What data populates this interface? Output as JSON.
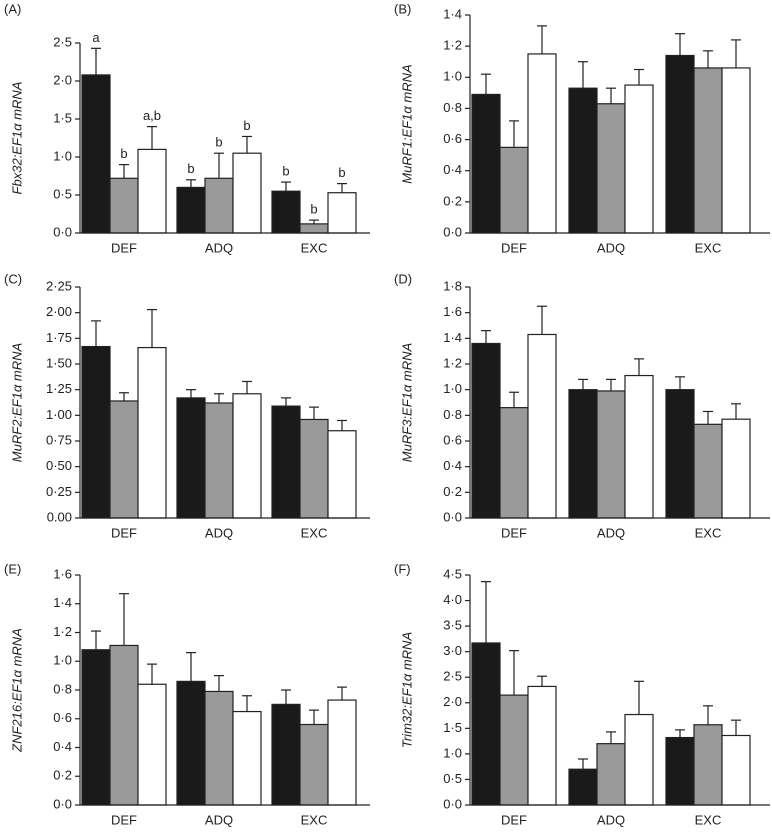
{
  "chart_data": [
    {
      "type": "bar",
      "panel": "(A)",
      "ylabel": "Fbx32:EF1α mRNA",
      "categories": [
        "DEF",
        "ADQ",
        "EXC"
      ],
      "ylim": [
        0,
        2.5
      ],
      "yticks": [
        {
          "value": 0,
          "label": "0·0"
        },
        {
          "value": 0.5,
          "label": "0·5"
        },
        {
          "value": 1,
          "label": "1·0"
        },
        {
          "value": 1.5,
          "label": "1·5"
        },
        {
          "value": 2,
          "label": "2·0"
        },
        {
          "value": 2.5,
          "label": "2·5"
        }
      ],
      "series": [
        {
          "color": "#1a1a1a",
          "values": [
            2.08,
            0.6,
            0.55
          ],
          "errors": [
            0.35,
            0.1,
            0.12
          ],
          "letters": [
            "a",
            "b",
            "b"
          ]
        },
        {
          "color": "#9a9a9a",
          "values": [
            0.72,
            0.72,
            0.12
          ],
          "errors": [
            0.18,
            0.33,
            0.05
          ],
          "letters": [
            "b",
            "b",
            "b"
          ]
        },
        {
          "color": "#ffffff",
          "values": [
            1.1,
            1.05,
            0.53
          ],
          "errors": [
            0.3,
            0.22,
            0.12
          ],
          "letters": [
            "a,b",
            "b",
            "b"
          ]
        }
      ]
    },
    {
      "type": "bar",
      "panel": "(B)",
      "ylabel": "MuRF1:EF1α mRNA",
      "categories": [
        "DEF",
        "ADQ",
        "EXC"
      ],
      "ylim": [
        0,
        1.4
      ],
      "yticks": [
        {
          "value": 0,
          "label": "0·0"
        },
        {
          "value": 0.2,
          "label": "0·2"
        },
        {
          "value": 0.4,
          "label": "0·4"
        },
        {
          "value": 0.6,
          "label": "0·6"
        },
        {
          "value": 0.8,
          "label": "0·8"
        },
        {
          "value": 1,
          "label": "1·0"
        },
        {
          "value": 1.2,
          "label": "1·2"
        },
        {
          "value": 1.4,
          "label": "1·4"
        }
      ],
      "series": [
        {
          "color": "#1a1a1a",
          "values": [
            0.89,
            0.93,
            1.14
          ],
          "errors": [
            0.13,
            0.17,
            0.14
          ]
        },
        {
          "color": "#9a9a9a",
          "values": [
            0.55,
            0.83,
            1.06
          ],
          "errors": [
            0.17,
            0.1,
            0.11
          ]
        },
        {
          "color": "#ffffff",
          "values": [
            1.15,
            0.95,
            1.06
          ],
          "errors": [
            0.18,
            0.1,
            0.18
          ]
        }
      ]
    },
    {
      "type": "bar",
      "panel": "(C)",
      "ylabel": "MuRF2:EF1α mRNA",
      "categories": [
        "DEF",
        "ADQ",
        "EXC"
      ],
      "ylim": [
        0,
        2.25
      ],
      "yticks": [
        {
          "value": 0,
          "label": "0.00"
        },
        {
          "value": 0.25,
          "label": "0·25"
        },
        {
          "value": 0.5,
          "label": "0·50"
        },
        {
          "value": 0.75,
          "label": "0·75"
        },
        {
          "value": 1,
          "label": "1·00"
        },
        {
          "value": 1.25,
          "label": "1·25"
        },
        {
          "value": 1.5,
          "label": "1·50"
        },
        {
          "value": 1.75,
          "label": "1·75"
        },
        {
          "value": 2,
          "label": "2·00"
        },
        {
          "value": 2.25,
          "label": "2·25"
        }
      ],
      "series": [
        {
          "color": "#1a1a1a",
          "values": [
            1.67,
            1.17,
            1.09
          ],
          "errors": [
            0.25,
            0.08,
            0.08
          ]
        },
        {
          "color": "#9a9a9a",
          "values": [
            1.14,
            1.12,
            0.96
          ],
          "errors": [
            0.08,
            0.09,
            0.12
          ]
        },
        {
          "color": "#ffffff",
          "values": [
            1.66,
            1.21,
            0.85
          ],
          "errors": [
            0.37,
            0.12,
            0.1
          ]
        }
      ]
    },
    {
      "type": "bar",
      "panel": "(D)",
      "ylabel": "MuRF3:EF1α mRNA",
      "categories": [
        "DEF",
        "ADQ",
        "EXC"
      ],
      "ylim": [
        0,
        1.8
      ],
      "yticks": [
        {
          "value": 0,
          "label": "0·0"
        },
        {
          "value": 0.2,
          "label": "0·2"
        },
        {
          "value": 0.4,
          "label": "0·4"
        },
        {
          "value": 0.6,
          "label": "0·6"
        },
        {
          "value": 0.8,
          "label": "0·8"
        },
        {
          "value": 1,
          "label": "1·0"
        },
        {
          "value": 1.2,
          "label": "1·2"
        },
        {
          "value": 1.4,
          "label": "1·4"
        },
        {
          "value": 1.6,
          "label": "1·6"
        },
        {
          "value": 1.8,
          "label": "1·8"
        }
      ],
      "series": [
        {
          "color": "#1a1a1a",
          "values": [
            1.36,
            1.0,
            1.0
          ],
          "errors": [
            0.1,
            0.08,
            0.1
          ]
        },
        {
          "color": "#9a9a9a",
          "values": [
            0.86,
            0.99,
            0.73
          ],
          "errors": [
            0.12,
            0.09,
            0.1
          ]
        },
        {
          "color": "#ffffff",
          "values": [
            1.43,
            1.11,
            0.77
          ],
          "errors": [
            0.22,
            0.13,
            0.12
          ]
        }
      ]
    },
    {
      "type": "bar",
      "panel": "(E)",
      "ylabel": "ZNF216:EF1α mRNA",
      "categories": [
        "DEF",
        "ADQ",
        "EXC"
      ],
      "ylim": [
        0,
        1.6
      ],
      "yticks": [
        {
          "value": 0,
          "label": "0·0"
        },
        {
          "value": 0.2,
          "label": "0·2"
        },
        {
          "value": 0.4,
          "label": "0·4"
        },
        {
          "value": 0.6,
          "label": "0·6"
        },
        {
          "value": 0.8,
          "label": "0·8"
        },
        {
          "value": 1,
          "label": "1·0"
        },
        {
          "value": 1.2,
          "label": "1·2"
        },
        {
          "value": 1.4,
          "label": "1·4"
        },
        {
          "value": 1.6,
          "label": "1·6"
        }
      ],
      "series": [
        {
          "color": "#1a1a1a",
          "values": [
            1.08,
            0.86,
            0.7
          ],
          "errors": [
            0.13,
            0.2,
            0.1
          ]
        },
        {
          "color": "#9a9a9a",
          "values": [
            1.11,
            0.79,
            0.56
          ],
          "errors": [
            0.36,
            0.11,
            0.1
          ]
        },
        {
          "color": "#ffffff",
          "values": [
            0.84,
            0.65,
            0.73
          ],
          "errors": [
            0.14,
            0.11,
            0.09
          ]
        }
      ]
    },
    {
      "type": "bar",
      "panel": "(F)",
      "ylabel": "Trim32:EF1α mRNA",
      "categories": [
        "DEF",
        "ADQ",
        "EXC"
      ],
      "ylim": [
        0,
        4.5
      ],
      "yticks": [
        {
          "value": 0,
          "label": "0·0"
        },
        {
          "value": 0.5,
          "label": "0·5"
        },
        {
          "value": 1,
          "label": "1·0"
        },
        {
          "value": 1.5,
          "label": "1·5"
        },
        {
          "value": 2,
          "label": "2·0"
        },
        {
          "value": 2.5,
          "label": "2·5"
        },
        {
          "value": 3,
          "label": "3·0"
        },
        {
          "value": 3.5,
          "label": "3·5"
        },
        {
          "value": 4,
          "label": "4·0"
        },
        {
          "value": 4.5,
          "label": "4·5"
        }
      ],
      "series": [
        {
          "color": "#1a1a1a",
          "values": [
            3.17,
            0.7,
            1.32
          ],
          "errors": [
            1.2,
            0.2,
            0.15
          ]
        },
        {
          "color": "#9a9a9a",
          "values": [
            2.15,
            1.2,
            1.57
          ],
          "errors": [
            0.87,
            0.23,
            0.37
          ]
        },
        {
          "color": "#ffffff",
          "values": [
            2.32,
            1.77,
            1.36
          ],
          "errors": [
            0.2,
            0.65,
            0.3
          ]
        }
      ]
    }
  ]
}
